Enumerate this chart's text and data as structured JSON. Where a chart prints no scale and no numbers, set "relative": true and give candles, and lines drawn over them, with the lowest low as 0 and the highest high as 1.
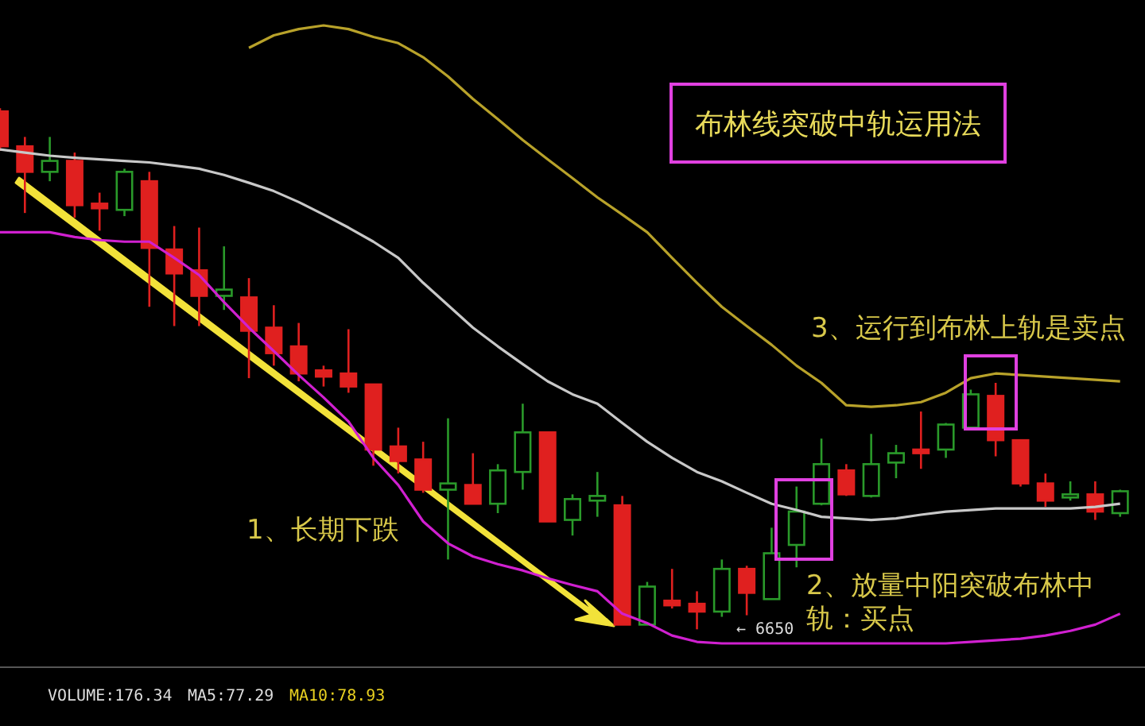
{
  "chart_data": {
    "type": "candlestick",
    "relative": true,
    "title": "布林线突破中轨运用法",
    "categories": [
      null,
      null,
      null,
      null,
      null,
      null,
      null,
      null,
      null,
      null,
      null,
      null,
      null,
      null,
      null,
      null,
      null,
      null,
      null,
      null,
      null,
      null,
      null,
      null,
      null,
      null,
      null,
      null,
      null,
      null,
      null,
      null,
      null,
      null,
      null,
      null,
      null,
      null,
      null,
      null,
      null,
      null,
      null,
      null,
      null,
      null
    ],
    "ohlc": [
      [
        0.994,
        1.0,
        0.918,
        0.927
      ],
      [
        0.927,
        0.945,
        0.799,
        0.878
      ],
      [
        0.878,
        0.945,
        0.86,
        0.899
      ],
      [
        0.899,
        0.915,
        0.79,
        0.814
      ],
      [
        0.817,
        0.838,
        0.765,
        0.808
      ],
      [
        0.805,
        0.884,
        0.793,
        0.878
      ],
      [
        0.86,
        0.878,
        0.619,
        0.732
      ],
      [
        0.729,
        0.774,
        0.582,
        0.683
      ],
      [
        0.689,
        0.771,
        0.582,
        0.64
      ],
      [
        0.64,
        0.735,
        0.613,
        0.652
      ],
      [
        0.637,
        0.674,
        0.482,
        0.573
      ],
      [
        0.579,
        0.622,
        0.506,
        0.53
      ],
      [
        0.543,
        0.588,
        0.476,
        0.491
      ],
      [
        0.497,
        0.506,
        0.466,
        0.485
      ],
      [
        0.491,
        0.576,
        0.454,
        0.466
      ],
      [
        0.47,
        0.47,
        0.314,
        0.345
      ],
      [
        0.351,
        0.387,
        0.299,
        0.323
      ],
      [
        0.326,
        0.36,
        0.262,
        0.268
      ],
      [
        0.268,
        0.405,
        0.134,
        0.28
      ],
      [
        0.277,
        0.338,
        0.241,
        0.241
      ],
      [
        0.241,
        0.317,
        0.223,
        0.305
      ],
      [
        0.302,
        0.433,
        0.268,
        0.378
      ],
      [
        0.378,
        0.378,
        0.207,
        0.207
      ],
      [
        0.21,
        0.259,
        0.18,
        0.25
      ],
      [
        0.247,
        0.302,
        0.216,
        0.256
      ],
      [
        0.238,
        0.256,
        0.009,
        0.009
      ],
      [
        0.009,
        0.091,
        0.009,
        0.082
      ],
      [
        0.055,
        0.116,
        0.04,
        0.046
      ],
      [
        0.049,
        0.073,
        0,
        0.034
      ],
      [
        0.034,
        0.134,
        0.024,
        0.116
      ],
      [
        0.116,
        0.122,
        0.027,
        0.07
      ],
      [
        0.058,
        0.195,
        0.058,
        0.146
      ],
      [
        0.162,
        0.274,
        0.119,
        0.226
      ],
      [
        0.241,
        0.366,
        0.238,
        0.317
      ],
      [
        0.305,
        0.317,
        0.256,
        0.259
      ],
      [
        0.256,
        0.375,
        0.253,
        0.317
      ],
      [
        0.32,
        0.354,
        0.29,
        0.338
      ],
      [
        0.345,
        0.418,
        0.308,
        0.338
      ],
      [
        0.345,
        0.396,
        0.329,
        0.393
      ],
      [
        0.387,
        0.46,
        0.387,
        0.451
      ],
      [
        0.448,
        0.473,
        0.332,
        0.363
      ],
      [
        0.363,
        0.363,
        0.274,
        0.28
      ],
      [
        0.28,
        0.299,
        0.235,
        0.247
      ],
      [
        0.253,
        0.284,
        0.247,
        0.259
      ],
      [
        0.259,
        0.284,
        0.21,
        0.226
      ],
      [
        0.223,
        0.268,
        0.216,
        0.265
      ]
    ],
    "series": [
      {
        "type": "line",
        "color": "#b8a22a",
        "values": [
          null,
          null,
          null,
          null,
          null,
          null,
          null,
          null,
          null,
          null,
          1.116,
          1.14,
          1.152,
          1.159,
          1.152,
          1.137,
          1.125,
          1.098,
          1.061,
          1.018,
          0.979,
          0.939,
          0.902,
          0.866,
          0.829,
          0.796,
          0.762,
          0.713,
          0.665,
          0.619,
          0.582,
          0.546,
          0.506,
          0.473,
          0.43,
          0.427,
          0.43,
          0.436,
          0.454,
          0.482,
          0.491,
          0.488,
          0.485,
          0.482,
          0.479,
          0.476
        ]
      },
      {
        "type": "line",
        "color": "#c8c8c8",
        "values": [
          0.921,
          0.915,
          0.909,
          0.905,
          0.902,
          0.899,
          0.896,
          0.89,
          0.884,
          0.872,
          0.857,
          0.841,
          0.82,
          0.796,
          0.771,
          0.744,
          0.713,
          0.665,
          0.622,
          0.579,
          0.543,
          0.509,
          0.476,
          0.451,
          0.433,
          0.396,
          0.36,
          0.329,
          0.302,
          0.284,
          0.262,
          0.241,
          0.229,
          0.216,
          0.213,
          0.21,
          0.213,
          0.22,
          0.226,
          0.229,
          0.232,
          0.232,
          0.232,
          0.232,
          0.235,
          0.241
        ]
      },
      {
        "type": "line",
        "color": "#d020d0",
        "values": [
          0.762,
          0.762,
          0.762,
          0.753,
          0.747,
          0.744,
          0.744,
          0.713,
          0.68,
          0.628,
          0.579,
          0.534,
          0.488,
          0.445,
          0.399,
          0.329,
          0.277,
          0.207,
          0.165,
          0.14,
          0.125,
          0.113,
          0.098,
          0.085,
          0.073,
          0.03,
          0.012,
          -0.012,
          -0.024,
          -0.027,
          -0.027,
          -0.027,
          -0.027,
          -0.027,
          -0.027,
          -0.027,
          -0.027,
          -0.027,
          -0.027,
          -0.024,
          -0.021,
          -0.018,
          -0.012,
          -0.003,
          0.009,
          0.03
        ]
      }
    ],
    "annotations": [
      {
        "text": "1、长期下跌"
      },
      {
        "text": "2、放量中阳突破布林中轨：买点"
      },
      {
        "text": "3、运行到布林上轨是卖点"
      },
      "← 6650",
      {
        "text": "VOLUME:176.34"
      },
      {
        "text": "MA5:77.29"
      },
      {
        "text": "MA10:78.93"
      }
    ]
  }
}
